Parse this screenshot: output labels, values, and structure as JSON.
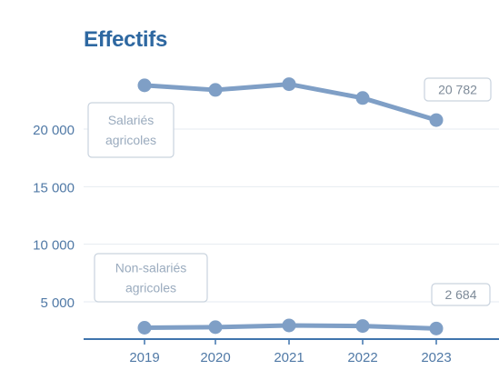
{
  "chart_data": {
    "type": "line",
    "title": "Effectifs",
    "categories": [
      "2019",
      "2020",
      "2021",
      "2022",
      "2023"
    ],
    "ylim": [
      2000,
      26000
    ],
    "yticks": [
      "20 000",
      "15 000",
      "10 000",
      "5 000"
    ],
    "ytick_values": [
      20000,
      15000,
      10000,
      5000
    ],
    "grid": true,
    "series": [
      {
        "name": "Salariés agricoles",
        "label_lines": [
          "Salariés",
          "agricoles"
        ],
        "values": [
          23800,
          23400,
          23900,
          22700,
          20782
        ],
        "end_label": "20 782"
      },
      {
        "name": "Non-salariés agricoles",
        "label_lines": [
          "Non-salariés",
          "agricoles"
        ],
        "values": [
          2750,
          2800,
          2950,
          2900,
          2684
        ],
        "end_label": "2 684"
      }
    ],
    "colors": {
      "line": "#7f9fc6",
      "title": "#2e68a1",
      "tick": "#5079a6",
      "grid": "#e6ebf1",
      "axis": "#3f74ad",
      "label_box": "#c9d3de",
      "label_text": "#9aabbe",
      "value_text": "#7d8a98"
    }
  }
}
